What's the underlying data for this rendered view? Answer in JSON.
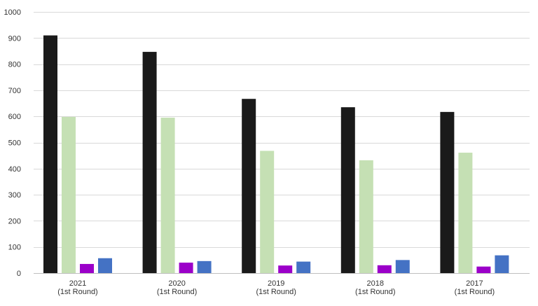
{
  "chart_data": {
    "type": "bar",
    "categories": [
      [
        "2021",
        "(1st Round)"
      ],
      [
        "2020",
        "(1st Round)"
      ],
      [
        "2019",
        "(1st Round)"
      ],
      [
        "2018",
        "(1st Round)"
      ],
      [
        "2017",
        "(1st Round)"
      ]
    ],
    "series": [
      {
        "color": "#1a1a1a",
        "values": [
          910,
          847,
          667,
          635,
          617
        ]
      },
      {
        "color": "#c5e0b4",
        "values": [
          598,
          595,
          468,
          432,
          461
        ]
      },
      {
        "color": "#9b00c9",
        "values": [
          35,
          40,
          29,
          30,
          25
        ]
      },
      {
        "color": "#4472c4",
        "values": [
          57,
          46,
          44,
          50,
          68
        ]
      }
    ],
    "ylim": [
      0,
      1000
    ],
    "yticks": [
      0,
      100,
      200,
      300,
      400,
      500,
      600,
      700,
      800,
      900,
      1000
    ],
    "grid": true,
    "grid_color": "#d9d9d9",
    "axis_color": "#bfbfbf",
    "title": "",
    "xlabel": "",
    "ylabel": ""
  }
}
